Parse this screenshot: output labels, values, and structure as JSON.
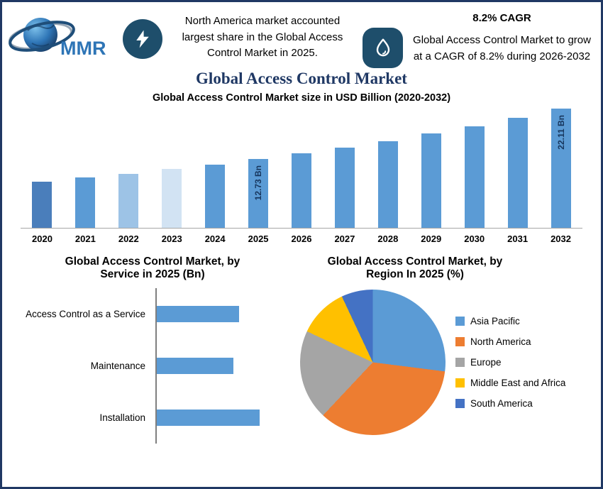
{
  "brand": "MMR",
  "page": {
    "border_color": "#203864",
    "badge_color": "#1E4E6B",
    "title_color": "#1F3864",
    "bar_blue": "#5B9BD5"
  },
  "header": {
    "left_note": "North America market accounted largest share in the Global Access Control Market in 2025.",
    "cagr_heading": "8.2% CAGR",
    "right_note": "Global Access Control Market to grow at a CAGR of 8.2% during 2026-2032",
    "left_icon": "lightning-icon",
    "right_icon": "flame-icon"
  },
  "title": "Global Access Control Market",
  "chart_data": [
    {
      "type": "bar",
      "title": "Global Access Control Market size in USD Billion (2020-2032)",
      "xlabel": "",
      "ylabel": "USD Billion",
      "categories": [
        "2020",
        "2021",
        "2022",
        "2023",
        "2024",
        "2025",
        "2026",
        "2027",
        "2028",
        "2029",
        "2030",
        "2031",
        "2032"
      ],
      "values": [
        8.6,
        9.3,
        10.05,
        10.9,
        11.77,
        12.73,
        13.77,
        14.9,
        16.12,
        17.44,
        18.87,
        20.43,
        22.11
      ],
      "bar_labels": {
        "2025": "12.73 Bn",
        "2032": "22.11 Bn"
      },
      "bar_colors": [
        "#4A7EBB",
        "#5B9BD5",
        "#9DC3E6",
        "#D2E3F3",
        "#5B9BD5",
        "#5B9BD5",
        "#5B9BD5",
        "#5B9BD5",
        "#5B9BD5",
        "#5B9BD5",
        "#5B9BD5",
        "#5B9BD5",
        "#5B9BD5"
      ],
      "grid": false,
      "cagr": "8.2% (2026-2032)"
    },
    {
      "type": "bar",
      "orientation": "horizontal",
      "title": "Global Access Control Market, by Service in 2025 (Bn)",
      "categories": [
        "Access Control as a Service",
        "Maintenance",
        "Installation"
      ],
      "values": [
        4.0,
        3.7,
        5.0
      ],
      "bar_color": "#5B9BD5",
      "grid": false
    },
    {
      "type": "pie",
      "title": "Global Access Control Market, by Region In 2025 (%)",
      "labels": [
        "Asia Pacific",
        "North America",
        "Europe",
        "Middle East and Africa",
        "South America"
      ],
      "values": [
        27,
        35,
        20,
        11,
        7
      ],
      "colors": [
        "#5B9BD5",
        "#ED7D31",
        "#A5A5A5",
        "#FFC000",
        "#4472C4"
      ],
      "legend_position": "right"
    }
  ]
}
